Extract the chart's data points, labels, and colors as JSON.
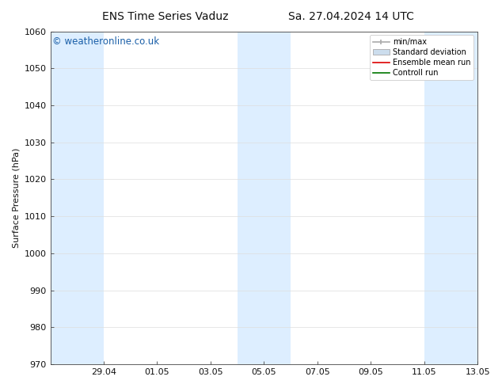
{
  "title_left": "ENS Time Series Vaduz",
  "title_right": "Sa. 27.04.2024 14 UTC",
  "ylabel": "Surface Pressure (hPa)",
  "ylim": [
    970,
    1060
  ],
  "yticks": [
    970,
    980,
    990,
    1000,
    1010,
    1020,
    1030,
    1040,
    1050,
    1060
  ],
  "background_color": "#ffffff",
  "plot_bg_color": "#ffffff",
  "watermark": "© weatheronline.co.uk",
  "watermark_color": "#1a5fa8",
  "shaded_color": "#ddeeff",
  "tick_labels": [
    "29.04",
    "01.05",
    "03.05",
    "05.05",
    "07.05",
    "09.05",
    "11.05",
    "13.05"
  ],
  "legend_entries": [
    "min/max",
    "Standard deviation",
    "Ensemble mean run",
    "Controll run"
  ],
  "legend_minmax_color": "#aaaaaa",
  "legend_std_color": "#ccdded",
  "legend_ens_color": "#dd0000",
  "legend_ctrl_color": "#007700",
  "font_color": "#111111",
  "axis_color": "#444444",
  "grid_color": "#dddddd",
  "title_fontsize": 10,
  "label_fontsize": 8,
  "tick_fontsize": 8
}
